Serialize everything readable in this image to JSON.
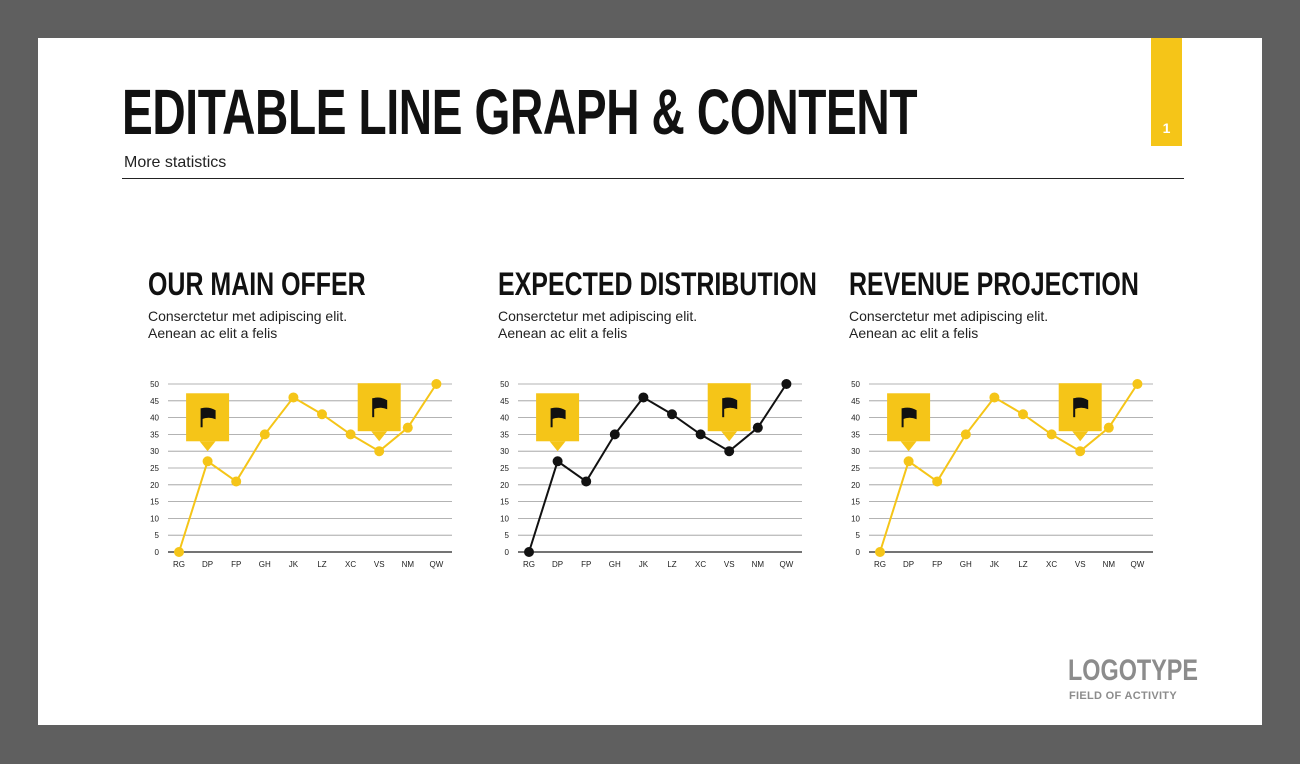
{
  "slide": {
    "title": "EDITABLE LINE GRAPH & CONTENT",
    "subtitle": "More statistics",
    "page_number": "1",
    "logo": "LOGOTYPE",
    "logo_sub": "FIELD OF ACTIVITY"
  },
  "panels": [
    {
      "title": "OUR MAIN OFFER",
      "desc1": "Conserctetur met adipiscing elit.",
      "desc2": "Aenean ac elit a felis"
    },
    {
      "title": "EXPECTED DISTRIBUTION",
      "desc1": "Conserctetur met adipiscing elit.",
      "desc2": "Aenean ac elit a felis"
    },
    {
      "title": "REVENUE PROJECTION",
      "desc1": "Conserctetur met adipiscing elit.",
      "desc2": "Aenean ac elit a felis"
    }
  ],
  "colors": {
    "accent": "#f5c518",
    "dark": "#111111",
    "background": "#5f5f5f"
  },
  "chart_data": [
    {
      "type": "line",
      "categories": [
        "RG",
        "DP",
        "FP",
        "GH",
        "JK",
        "LZ",
        "XC",
        "VS",
        "NM",
        "QW"
      ],
      "series": [
        {
          "values": [
            0,
            27,
            21,
            35,
            46,
            41,
            35,
            30,
            37,
            50
          ],
          "color": "#f5c518"
        }
      ],
      "yticks": [
        0,
        5,
        10,
        15,
        20,
        25,
        30,
        35,
        40,
        45,
        50
      ],
      "ylim": [
        0,
        50
      ],
      "grid": true,
      "markers": [
        {
          "category": "DP",
          "icon": "flag-icon"
        },
        {
          "category": "VS",
          "icon": "flag-icon"
        }
      ]
    },
    {
      "type": "line",
      "categories": [
        "RG",
        "DP",
        "FP",
        "GH",
        "JK",
        "LZ",
        "XC",
        "VS",
        "NM",
        "QW"
      ],
      "series": [
        {
          "values": [
            0,
            27,
            21,
            35,
            46,
            41,
            35,
            30,
            37,
            50
          ],
          "color": "#111111"
        }
      ],
      "yticks": [
        0,
        5,
        10,
        15,
        20,
        25,
        30,
        35,
        40,
        45,
        50
      ],
      "ylim": [
        0,
        50
      ],
      "grid": true,
      "markers": [
        {
          "category": "DP",
          "icon": "flag-icon"
        },
        {
          "category": "VS",
          "icon": "flag-icon"
        }
      ]
    },
    {
      "type": "line",
      "categories": [
        "RG",
        "DP",
        "FP",
        "GH",
        "JK",
        "LZ",
        "XC",
        "VS",
        "NM",
        "QW"
      ],
      "series": [
        {
          "values": [
            0,
            27,
            21,
            35,
            46,
            41,
            35,
            30,
            37,
            50
          ],
          "color": "#f5c518"
        }
      ],
      "yticks": [
        0,
        5,
        10,
        15,
        20,
        25,
        30,
        35,
        40,
        45,
        50
      ],
      "ylim": [
        0,
        50
      ],
      "grid": true,
      "markers": [
        {
          "category": "DP",
          "icon": "flag-icon"
        },
        {
          "category": "VS",
          "icon": "flag-icon"
        }
      ]
    }
  ]
}
